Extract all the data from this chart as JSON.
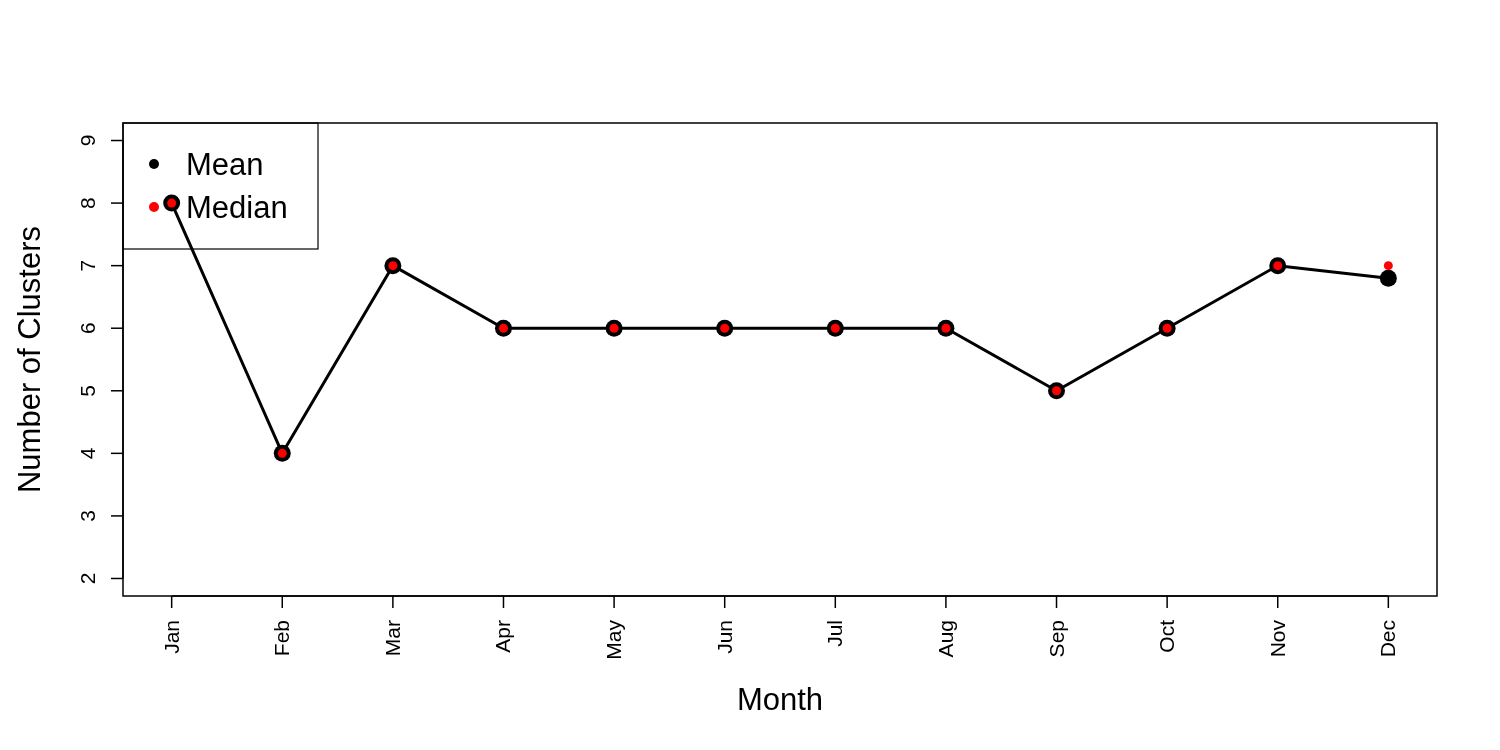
{
  "chart_data": {
    "type": "line",
    "xlabel": "Month",
    "ylabel": "Number of Clusters",
    "categories": [
      "Jan",
      "Feb",
      "Mar",
      "Apr",
      "May",
      "Jun",
      "Jul",
      "Aug",
      "Sep",
      "Oct",
      "Nov",
      "Dec"
    ],
    "series": [
      {
        "name": "Mean",
        "color": "#000000",
        "marker": "circle",
        "values": [
          8,
          4,
          7,
          6,
          6,
          6,
          6,
          6,
          5,
          6,
          7,
          6.8
        ]
      },
      {
        "name": "Median",
        "type": "scatter",
        "color": "#ff0000",
        "marker": "circle",
        "values": [
          8,
          4,
          7,
          6,
          6,
          6,
          6,
          6,
          5,
          6,
          7,
          7
        ]
      }
    ],
    "ylim": [
      1.72,
      9.28
    ],
    "yticks": [
      2,
      3,
      4,
      5,
      6,
      7,
      8,
      9
    ],
    "grid": false,
    "legend": "top left"
  }
}
